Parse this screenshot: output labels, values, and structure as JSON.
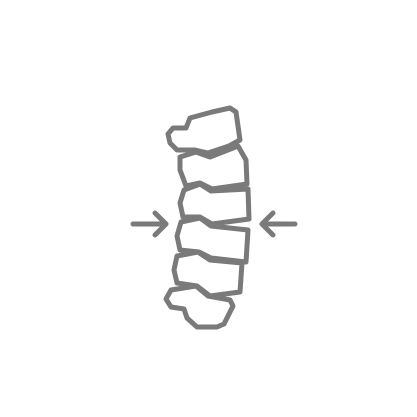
{
  "icon": {
    "name": "spine-compression-icon",
    "color": "#7a7a7a",
    "background": "#ffffff"
  }
}
